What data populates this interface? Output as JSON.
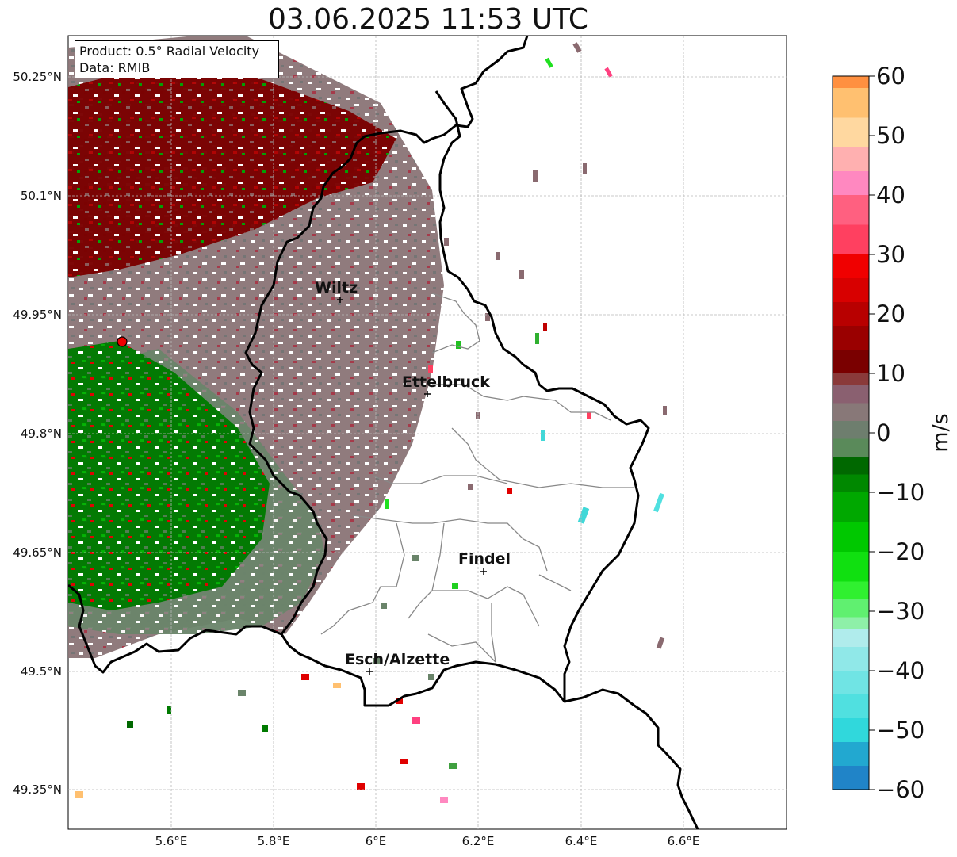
{
  "title": "03.06.2025 11:53 UTC",
  "info": {
    "product": "Product: 0.5° Radial Velocity",
    "data_source": "Data: RMIB"
  },
  "axes": {
    "lat_labels": [
      "50.25°N",
      "50.1°N",
      "49.95°N",
      "49.8°N",
      "49.65°N",
      "49.5°N",
      "49.35°N"
    ],
    "lon_labels": [
      "5.6°E",
      "5.8°E",
      "6°E",
      "6.2°E",
      "6.4°E",
      "6.6°E"
    ]
  },
  "places": [
    {
      "name": "Wiltz"
    },
    {
      "name": "Ettelbruck"
    },
    {
      "name": "Findel"
    },
    {
      "name": "Esch/Alzette"
    }
  ],
  "colorbar": {
    "unit": "m/s",
    "ticks": [
      "60",
      "50",
      "40",
      "30",
      "20",
      "10",
      "0",
      "−10",
      "−20",
      "−30",
      "−40",
      "−50",
      "−60"
    ],
    "min": -60,
    "max": 60,
    "colors": [
      "#2084c8",
      "#22a8d0",
      "#30d8dc",
      "#50e0e0",
      "#70e4e4",
      "#90e8e8",
      "#b0ecec",
      "#8ef0a8",
      "#60f070",
      "#30f030",
      "#10e010",
      "#00c800",
      "#00a800",
      "#008800",
      "#006800",
      "#5a8a5a",
      "#6e7e6e",
      "#887878",
      "#8a6070",
      "#8a3a3a",
      "#7a0000",
      "#9a0000",
      "#b80000",
      "#d80000",
      "#f00000",
      "#ff4060",
      "#ff6080",
      "#ff88c0",
      "#ffb0b0",
      "#ffd8a0",
      "#ffc070",
      "#ff9040"
    ],
    "color_stops": [
      -60,
      -56,
      -52,
      -48,
      -44,
      -40,
      -36,
      -33,
      -31,
      -28,
      -25,
      -20,
      -15,
      -10,
      -7,
      -4,
      -1,
      2,
      5,
      8,
      10,
      14,
      18,
      22,
      26,
      30,
      35,
      40,
      44,
      48,
      53,
      58
    ]
  },
  "colors": {
    "approaching_green": "#008800",
    "neutral_gray": "#8a7a7a",
    "receding_red": "#7a0000",
    "border": "#000000",
    "canton_lines": "#888888",
    "radar_site": "#ee0000"
  }
}
